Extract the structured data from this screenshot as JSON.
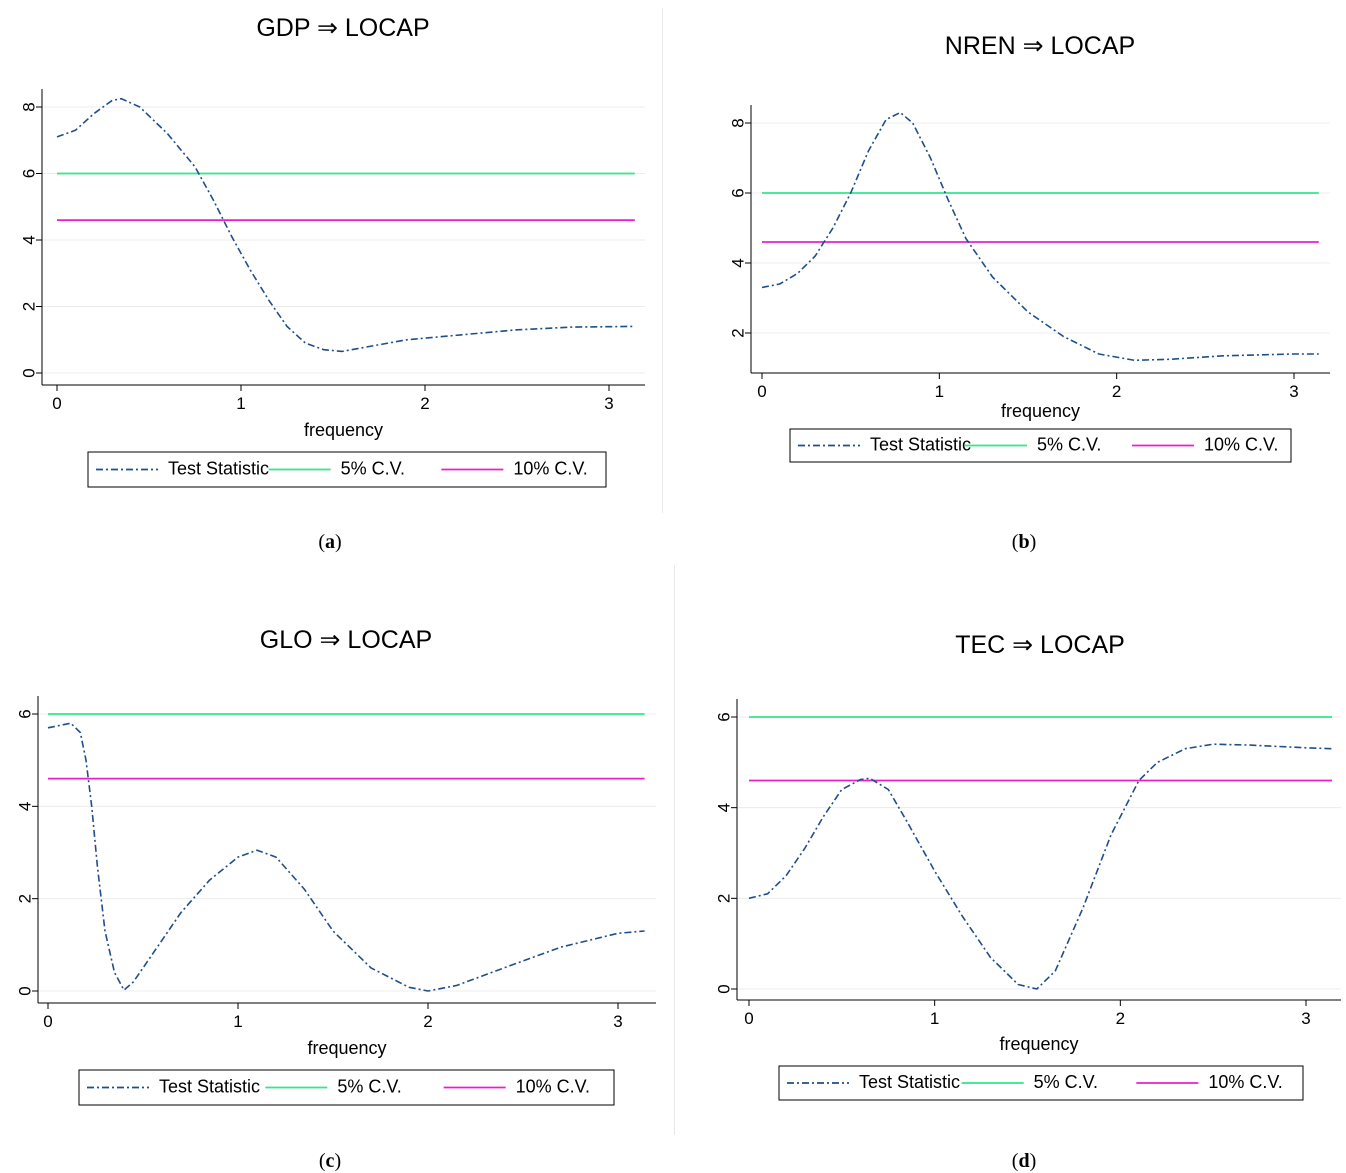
{
  "chart_data": [
    {
      "type": "line",
      "title": "GDP ⇒ LOCAP",
      "caption": "a",
      "xlabel": "frequency",
      "ylabel": "",
      "xlim": [
        0,
        3.14
      ],
      "ylim": [
        0,
        8
      ],
      "xticks": [
        0,
        1,
        2,
        3
      ],
      "yticks": [
        0,
        2,
        4,
        6,
        8
      ],
      "grid": "horizontal",
      "legend": "bottom",
      "series": [
        {
          "name": "Test Statistic",
          "color": "#1f4e8c",
          "style": "dash-dot",
          "x": [
            0.0,
            0.1,
            0.2,
            0.3,
            0.35,
            0.45,
            0.6,
            0.75,
            0.85,
            0.95,
            1.05,
            1.15,
            1.25,
            1.35,
            1.45,
            1.55,
            1.7,
            1.9,
            2.2,
            2.5,
            2.8,
            3.14
          ],
          "y": [
            7.1,
            7.3,
            7.8,
            8.2,
            8.25,
            8.0,
            7.2,
            6.2,
            5.2,
            4.1,
            3.1,
            2.2,
            1.4,
            0.9,
            0.7,
            0.65,
            0.8,
            1.0,
            1.15,
            1.3,
            1.38,
            1.4
          ]
        },
        {
          "name": "5% C.V.",
          "color": "#2ee88a",
          "style": "solid",
          "x": [
            0,
            3.14
          ],
          "y": [
            6.0,
            6.0
          ]
        },
        {
          "name": "10% C.V.",
          "color": "#e620d2",
          "style": "solid",
          "x": [
            0,
            3.14
          ],
          "y": [
            4.6,
            4.6
          ]
        }
      ]
    },
    {
      "type": "line",
      "title": "NREN ⇒ LOCAP",
      "caption": "b",
      "xlabel": "frequency",
      "ylabel": "",
      "xlim": [
        0,
        3.14
      ],
      "ylim": [
        1.3,
        8.3
      ],
      "xticks": [
        0,
        1,
        2,
        3
      ],
      "yticks": [
        2,
        4,
        6,
        8
      ],
      "grid": "horizontal",
      "legend": "bottom",
      "series": [
        {
          "name": "Test Statistic",
          "color": "#1f4e8c",
          "style": "dash-dot",
          "x": [
            0.0,
            0.1,
            0.2,
            0.3,
            0.4,
            0.5,
            0.6,
            0.7,
            0.78,
            0.85,
            0.95,
            1.05,
            1.15,
            1.3,
            1.5,
            1.7,
            1.9,
            2.1,
            2.3,
            2.6,
            3.0,
            3.14
          ],
          "y": [
            3.3,
            3.4,
            3.7,
            4.2,
            5.0,
            6.0,
            7.2,
            8.1,
            8.3,
            8.0,
            7.0,
            5.8,
            4.7,
            3.6,
            2.6,
            1.9,
            1.4,
            1.22,
            1.25,
            1.35,
            1.4,
            1.4
          ]
        },
        {
          "name": "5% C.V.",
          "color": "#2ee88a",
          "style": "solid",
          "x": [
            0,
            3.14
          ],
          "y": [
            6.0,
            6.0
          ]
        },
        {
          "name": "10% C.V.",
          "color": "#e620d2",
          "style": "solid",
          "x": [
            0,
            3.14
          ],
          "y": [
            4.6,
            4.6
          ]
        }
      ]
    },
    {
      "type": "line",
      "title": "GLO ⇒ LOCAP",
      "caption": "c",
      "xlabel": "frequency",
      "ylabel": "",
      "xlim": [
        0,
        3.14
      ],
      "ylim": [
        0,
        6
      ],
      "xticks": [
        0,
        1,
        2,
        3
      ],
      "yticks": [
        0,
        2,
        4,
        6
      ],
      "grid": "horizontal",
      "legend": "bottom",
      "series": [
        {
          "name": "Test Statistic",
          "color": "#1f4e8c",
          "style": "dash-dot",
          "x": [
            0.0,
            0.06,
            0.12,
            0.17,
            0.2,
            0.23,
            0.26,
            0.3,
            0.35,
            0.4,
            0.45,
            0.55,
            0.7,
            0.85,
            1.0,
            1.1,
            1.2,
            1.35,
            1.5,
            1.7,
            1.9,
            2.0,
            2.15,
            2.4,
            2.7,
            3.0,
            3.14
          ],
          "y": [
            5.7,
            5.75,
            5.8,
            5.6,
            5.0,
            4.0,
            2.7,
            1.3,
            0.4,
            0.02,
            0.2,
            0.8,
            1.7,
            2.4,
            2.9,
            3.05,
            2.9,
            2.2,
            1.3,
            0.5,
            0.08,
            0.0,
            0.12,
            0.5,
            0.95,
            1.25,
            1.3
          ]
        },
        {
          "name": "5% C.V.",
          "color": "#2ee88a",
          "style": "solid",
          "x": [
            0,
            3.14
          ],
          "y": [
            6.0,
            6.0
          ]
        },
        {
          "name": "10% C.V.",
          "color": "#e620d2",
          "style": "solid",
          "x": [
            0,
            3.14
          ],
          "y": [
            4.6,
            4.6
          ]
        }
      ]
    },
    {
      "type": "line",
      "title": "TEC ⇒ LOCAP",
      "caption": "d",
      "xlabel": "frequency",
      "ylabel": "",
      "xlim": [
        0,
        3.14
      ],
      "ylim": [
        0,
        6
      ],
      "xticks": [
        0,
        1,
        2,
        3
      ],
      "yticks": [
        0,
        2,
        4,
        6
      ],
      "grid": "horizontal",
      "legend": "bottom",
      "series": [
        {
          "name": "Test Statistic",
          "color": "#1f4e8c",
          "style": "dash-dot",
          "x": [
            0.0,
            0.1,
            0.2,
            0.3,
            0.4,
            0.5,
            0.6,
            0.65,
            0.75,
            0.85,
            1.0,
            1.15,
            1.3,
            1.45,
            1.55,
            1.65,
            1.8,
            1.95,
            2.1,
            2.2,
            2.35,
            2.5,
            2.7,
            3.0,
            3.14
          ],
          "y": [
            2.0,
            2.1,
            2.5,
            3.1,
            3.8,
            4.4,
            4.62,
            4.65,
            4.4,
            3.7,
            2.6,
            1.6,
            0.7,
            0.1,
            0.0,
            0.4,
            1.8,
            3.4,
            4.6,
            5.0,
            5.3,
            5.4,
            5.38,
            5.32,
            5.3
          ]
        },
        {
          "name": "5% C.V.",
          "color": "#2ee88a",
          "style": "solid",
          "x": [
            0,
            3.14
          ],
          "y": [
            6.0,
            6.0
          ]
        },
        {
          "name": "10% C.V.",
          "color": "#e620d2",
          "style": "solid",
          "x": [
            0,
            3.14
          ],
          "y": [
            4.6,
            4.6
          ]
        }
      ]
    }
  ]
}
